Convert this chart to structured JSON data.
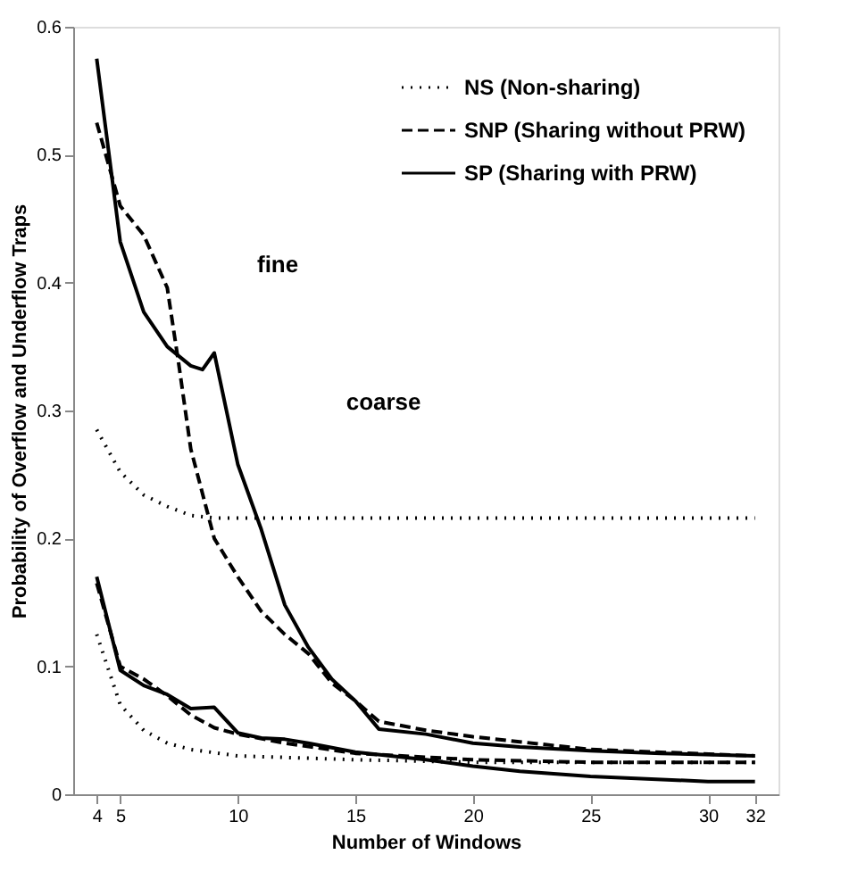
{
  "chart_data": {
    "type": "line",
    "xlabel": "Number of Windows",
    "ylabel": "Probability of Overflow and Underflow Traps",
    "xlim": [
      3,
      33
    ],
    "ylim": [
      0,
      0.6
    ],
    "xticks": [
      4,
      5,
      10,
      15,
      20,
      25,
      30,
      32
    ],
    "yticks": [
      0,
      0.1,
      0.2,
      0.3,
      0.4,
      0.5,
      0.6
    ],
    "grid": false,
    "legend": "top right",
    "marker": "none",
    "annotations": [
      "fine",
      "coarse"
    ],
    "series": [
      {
        "name": "NS (Non-sharing)",
        "color": "#000000",
        "line_style": "dotted",
        "x": [
          4,
          5,
          6,
          7,
          8,
          9,
          10,
          15,
          20,
          25,
          32
        ],
        "values": [
          0.285,
          0.252,
          0.234,
          0.225,
          0.218,
          0.216,
          0.216,
          0.216,
          0.216,
          0.216,
          0.216
        ]
      },
      {
        "name": "SNP (Sharing without PRW)",
        "color": "#000000",
        "line_style": "dashed",
        "x": [
          4,
          5,
          6,
          7,
          7.5,
          8,
          9,
          10,
          11,
          12,
          13,
          14,
          15,
          16,
          18,
          20,
          25,
          32
        ],
        "values": [
          0.525,
          0.46,
          0.437,
          0.396,
          0.335,
          0.27,
          0.2,
          0.17,
          0.143,
          0.125,
          0.11,
          0.087,
          0.073,
          0.057,
          0.05,
          0.045,
          0.035,
          0.03
        ]
      },
      {
        "name": "SP (Sharing with PRW)",
        "color": "#000000",
        "line_style": "solid",
        "x": [
          4,
          5,
          6,
          7,
          8,
          8.5,
          9,
          10,
          11,
          12,
          13,
          14,
          15,
          16,
          18,
          20,
          22,
          25,
          28,
          32
        ],
        "values": [
          0.575,
          0.432,
          0.377,
          0.35,
          0.335,
          0.332,
          0.345,
          0.258,
          0.207,
          0.148,
          0.115,
          0.09,
          0.073,
          0.051,
          0.047,
          0.04,
          0.037,
          0.034,
          0.032,
          0.03
        ]
      },
      {
        "color": "#000000",
        "line_style": "dotted",
        "x": [
          4,
          5,
          6,
          7,
          8,
          10,
          15,
          20,
          25,
          32
        ],
        "values": [
          0.125,
          0.07,
          0.05,
          0.04,
          0.035,
          0.03,
          0.027,
          0.025,
          0.025,
          0.025
        ]
      },
      {
        "color": "#000000",
        "line_style": "dashed",
        "x": [
          4,
          5,
          6,
          7,
          8,
          9,
          10,
          12,
          15,
          20,
          25,
          32
        ],
        "values": [
          0.165,
          0.1,
          0.09,
          0.077,
          0.062,
          0.052,
          0.047,
          0.04,
          0.032,
          0.027,
          0.025,
          0.025
        ]
      },
      {
        "color": "#000000",
        "line_style": "solid",
        "x": [
          4,
          5,
          6,
          7,
          8,
          9,
          10,
          11,
          12,
          13,
          15,
          18,
          20,
          22,
          25,
          30,
          32
        ],
        "values": [
          0.17,
          0.097,
          0.085,
          0.078,
          0.067,
          0.068,
          0.048,
          0.044,
          0.043,
          0.04,
          0.033,
          0.027,
          0.022,
          0.018,
          0.014,
          0.01,
          0.01
        ]
      }
    ]
  }
}
